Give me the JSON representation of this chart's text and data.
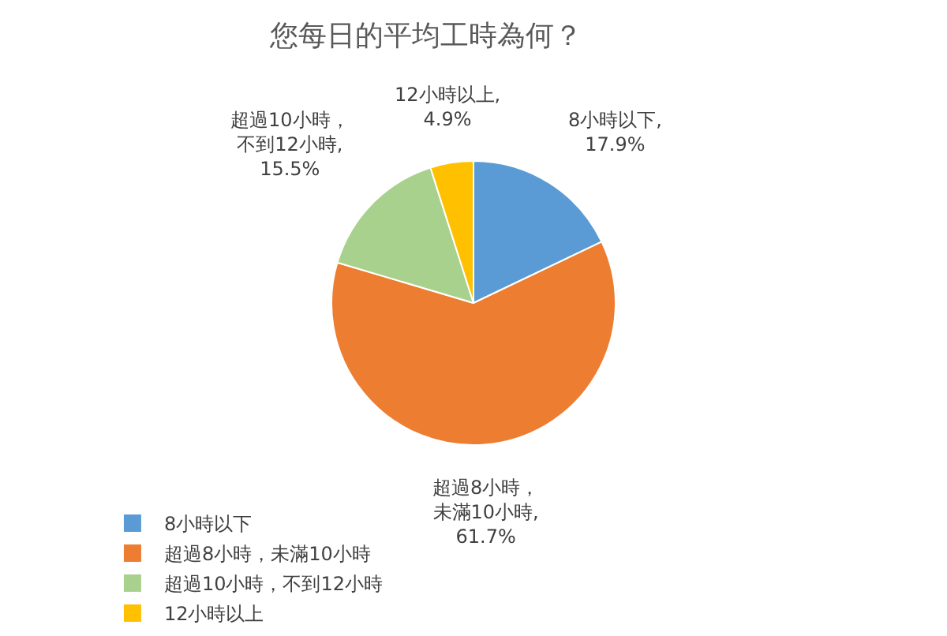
{
  "chart_data": {
    "type": "pie",
    "title": "您每日的平均工時為何？",
    "categories": [
      "8小時以下",
      "超過8小時，未滿10小時",
      "超過10小時，不到12小時",
      "12小時以上"
    ],
    "values": [
      17.9,
      61.7,
      15.5,
      4.9
    ],
    "colors": [
      "#5b9bd5",
      "#ed7d31",
      "#a9d18e",
      "#ffc000"
    ],
    "value_labels": [
      "8小時以下,17.9%",
      "超過8小時，未滿10小時,61.7%",
      "超過10小時，不到12小時,15.5%",
      "12小時以上,4.9%"
    ],
    "legend": "bottom"
  }
}
